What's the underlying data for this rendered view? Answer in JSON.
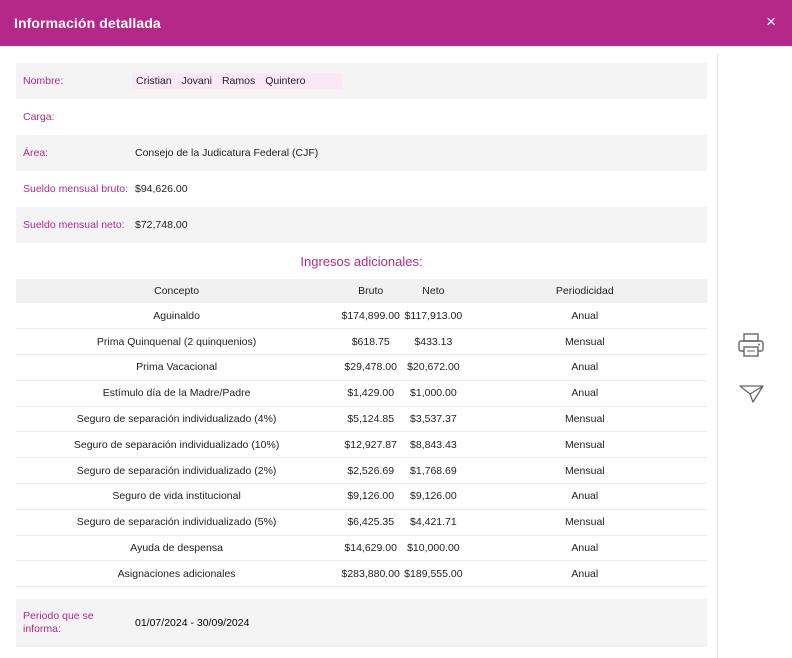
{
  "header": {
    "title": "Información detallada",
    "close_icon": "×"
  },
  "details": {
    "name_label": "Nombre:",
    "name_parts": [
      "Cristian",
      "Jovani",
      "Ramos",
      "Quintero"
    ],
    "carga_label": "Carga:",
    "carga_value": "",
    "area_label": "Área:",
    "area_value": "Consejo de la Judicatura Federal (CJF)",
    "bruto_label": "Sueldo mensual bruto:",
    "bruto_value": "$94,626.00",
    "neto_label": "Sueldo mensual neto:",
    "neto_value": "$72,748.00"
  },
  "ingresos": {
    "title": "Ingresos adicionales:",
    "columns": [
      "Concepto",
      "Bruto",
      "Neto",
      "Periodicidad"
    ],
    "rows": [
      {
        "concepto": "Aguinaldo",
        "bruto": "$174,899.00",
        "neto": "$117,913.00",
        "periodicidad": "Anual"
      },
      {
        "concepto": "Prima Quinquenal (2 quinquenios)",
        "bruto": "$618.75",
        "neto": "$433.13",
        "periodicidad": "Mensual"
      },
      {
        "concepto": "Prima Vacacional",
        "bruto": "$29,478.00",
        "neto": "$20,672.00",
        "periodicidad": "Anual"
      },
      {
        "concepto": "Estímulo día de la Madre/Padre",
        "bruto": "$1,429.00",
        "neto": "$1,000.00",
        "periodicidad": "Anual"
      },
      {
        "concepto": "Seguro de separación individualizado (4%)",
        "bruto": "$5,124.85",
        "neto": "$3,537.37",
        "periodicidad": "Mensual"
      },
      {
        "concepto": "Seguro de separación individualizado (10%)",
        "bruto": "$12,927.87",
        "neto": "$8,843.43",
        "periodicidad": "Mensual"
      },
      {
        "concepto": "Seguro de separación individualizado (2%)",
        "bruto": "$2,526.69",
        "neto": "$1,768.69",
        "periodicidad": "Mensual"
      },
      {
        "concepto": "Seguro de vida institucional",
        "bruto": "$9,126.00",
        "neto": "$9,126.00",
        "periodicidad": "Anual"
      },
      {
        "concepto": "Seguro de separación individualizado (5%)",
        "bruto": "$6,425.35",
        "neto": "$4,421.71",
        "periodicidad": "Mensual"
      },
      {
        "concepto": "Ayuda de despensa",
        "bruto": "$14,629.00",
        "neto": "$10,000.00",
        "periodicidad": "Anual"
      },
      {
        "concepto": "Asignaciones adicionales",
        "bruto": "$283,880.00",
        "neto": "$189,555.00",
        "periodicidad": "Anual"
      }
    ]
  },
  "periodo": {
    "label_line1": "Periodo que se",
    "label_line2": "informa:",
    "value": "01/07/2024 - 30/09/2024"
  },
  "side_actions": {
    "print_icon": "printer-icon",
    "send_icon": "send-icon"
  },
  "colors": {
    "accent": "#b5288a",
    "name_bg": "#fce7f4",
    "shaded": "#f4f4f5"
  }
}
